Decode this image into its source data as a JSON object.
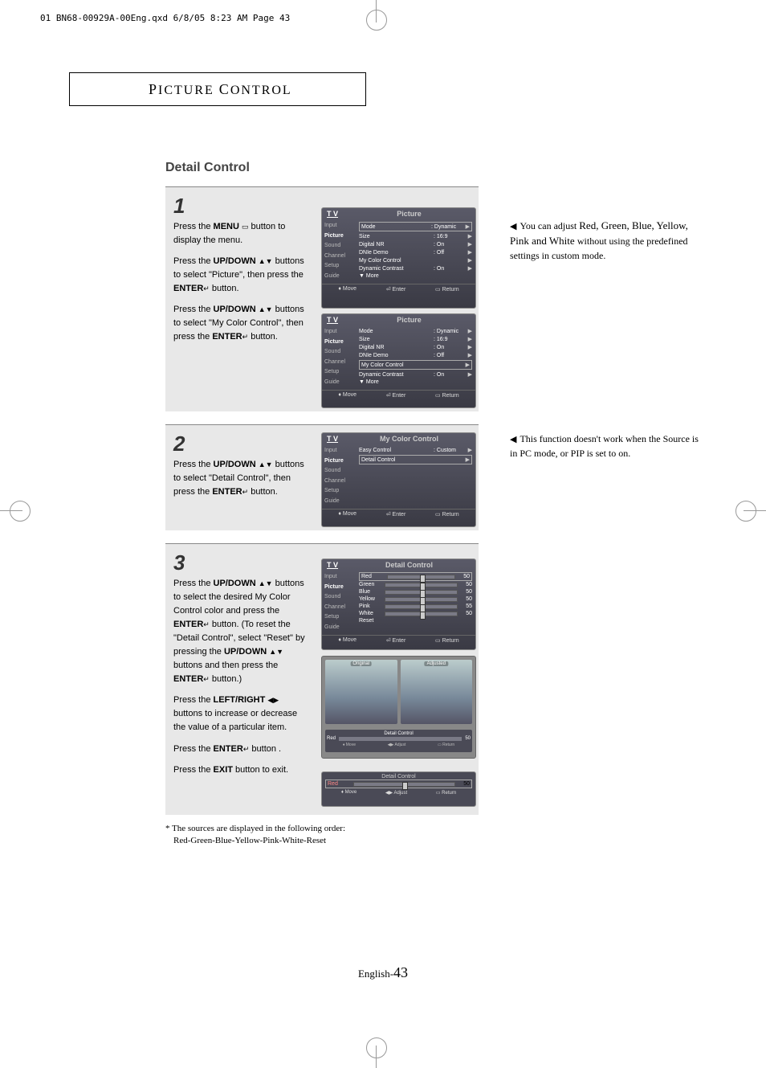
{
  "header_line": "01 BN68-00929A-00Eng.qxd  6/8/05 8:23 AM  Page 43",
  "section_title": "PICTURE CONTROL",
  "page_title": "Detail Control",
  "steps": {
    "s1": {
      "num": "1",
      "p1a": "Press the ",
      "p1b": "MENU",
      "p1c": " button to display the menu.",
      "p2a": "Press the ",
      "p2b": "UP/DOWN",
      "p2c": " buttons to select \"Picture\", then press the ",
      "p2d": "ENTER",
      "p2e": " button.",
      "p3a": "Press the ",
      "p3b": "UP/DOWN",
      "p3c": " buttons to select \"My Color Control\", then press the ",
      "p3d": "ENTER",
      "p3e": " button."
    },
    "s2": {
      "num": "2",
      "p1a": "Press the ",
      "p1b": "UP/DOWN",
      "p1c": " buttons to select \"Detail Control\", then press the ",
      "p1d": "ENTER",
      "p1e": "  button."
    },
    "s3": {
      "num": "3",
      "p1a": "Press the ",
      "p1b": "UP/DOWN",
      "p1c": " buttons to select the desired My Color Control color and press the ",
      "p1d": "ENTER",
      "p1e": " button. (To reset the \"Detail Control\", select \"Reset\" by pressing the ",
      "p1f": "UP/DOWN",
      "p1g": " buttons and then press the ",
      "p1h": "ENTER",
      "p1i": " button.)",
      "p2a": "Press the ",
      "p2b": "LEFT/RIGHT",
      "p2c": " buttons to increase or decrease the value of a particular item.",
      "p3a": "Press the ",
      "p3b": "ENTER",
      "p3c": "  button .",
      "p4a": "Press the ",
      "p4b": "EXIT",
      "p4c": " button to exit."
    }
  },
  "notes": {
    "n1a": "You can adjust ",
    "n1b": "Red, Green, Blue, Yellow, Pink and White ",
    "n1c": "without using the predefined settings in custom mode.",
    "n2": "This function doesn't work when the Source is in PC mode, or PIP is set to on."
  },
  "menu_side": [
    "Input",
    "Picture",
    "Sound",
    "Channel",
    "Setup",
    "Guide"
  ],
  "tv1": {
    "title": "Picture",
    "rows": [
      {
        "l": "Mode",
        "v": ": Dynamic",
        "box": true
      },
      {
        "l": "Size",
        "v": ": 16:9"
      },
      {
        "l": "Digital NR",
        "v": ": On"
      },
      {
        "l": "DNIe Demo",
        "v": ": Off"
      },
      {
        "l": "My Color Control",
        "v": ""
      },
      {
        "l": "Dynamic Contrast",
        "v": ": On"
      },
      {
        "l": "▼ More",
        "v": "",
        "noarr": true
      }
    ]
  },
  "tv2": {
    "title": "Picture",
    "rows": [
      {
        "l": "Mode",
        "v": ": Dynamic"
      },
      {
        "l": "Size",
        "v": ": 16:9"
      },
      {
        "l": "Digital NR",
        "v": ": On"
      },
      {
        "l": "DNIe Demo",
        "v": ": Off"
      },
      {
        "l": "My Color Control",
        "v": "",
        "box": true
      },
      {
        "l": "Dynamic Contrast",
        "v": ": On"
      },
      {
        "l": "▼ More",
        "v": "",
        "noarr": true
      }
    ]
  },
  "tv3": {
    "title": "My Color Control",
    "rows": [
      {
        "l": "Easy Control",
        "v": ": Custom"
      },
      {
        "l": "Detail Control",
        "v": "",
        "box": true
      }
    ]
  },
  "tv4": {
    "title": "Detail Control",
    "sliders": [
      {
        "l": "Red",
        "v": "50",
        "box": true
      },
      {
        "l": "Green",
        "v": "50"
      },
      {
        "l": "Blue",
        "v": "50"
      },
      {
        "l": "Yellow",
        "v": "50"
      },
      {
        "l": "Pink",
        "v": "55"
      },
      {
        "l": "White",
        "v": "50"
      },
      {
        "l": "Reset",
        "v": "",
        "nobar": true
      }
    ]
  },
  "footer": {
    "move": "Move",
    "enter": "Enter",
    "return": "Return",
    "adjust": "Adjust"
  },
  "preview": {
    "orig": "Original",
    "adj": "Adjusted",
    "title": "Detail Control",
    "color": "Red",
    "val": "50"
  },
  "adjustbar": {
    "title": "Detail Control",
    "color": "Red",
    "val": "50"
  },
  "footnote_a": "* The sources are displayed in the following order:",
  "footnote_b": "Red-Green-Blue-Yellow-Pink-White-Reset",
  "page_num_label": "English-",
  "page_num": "43",
  "icons": {
    "menu": "▭",
    "updown": "▲▼",
    "enter": "↵",
    "leftright": "◀▶",
    "tri": "◀",
    "move_i": "♦",
    "enter_i": "⏎",
    "return_i": "▭"
  }
}
